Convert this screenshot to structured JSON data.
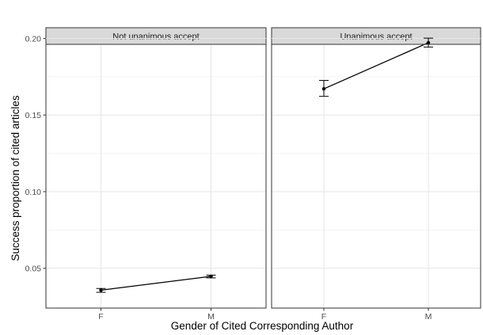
{
  "chart_data": {
    "type": "line",
    "xlabel": "Gender of Cited Corresponding Author",
    "ylabel": "Success proportion of cited articles",
    "categories": [
      "F",
      "M"
    ],
    "ylim": [
      0.024,
      0.207
    ],
    "yticks": [
      0.05,
      0.1,
      0.15,
      0.2
    ],
    "ytick_labels": [
      "0.05",
      "0.10",
      "0.15",
      "0.20"
    ],
    "grid": true,
    "facets": [
      {
        "title": "Not unanimous accept",
        "values": [
          0.0357,
          0.0447
        ],
        "error_low": [
          0.0343,
          0.0437
        ],
        "error_high": [
          0.0368,
          0.0455
        ]
      },
      {
        "title": "Unanimous accept",
        "values": [
          0.1671,
          0.1972
        ],
        "error_low": [
          0.1622,
          0.1944
        ],
        "error_high": [
          0.1726,
          0.2002
        ]
      }
    ]
  }
}
